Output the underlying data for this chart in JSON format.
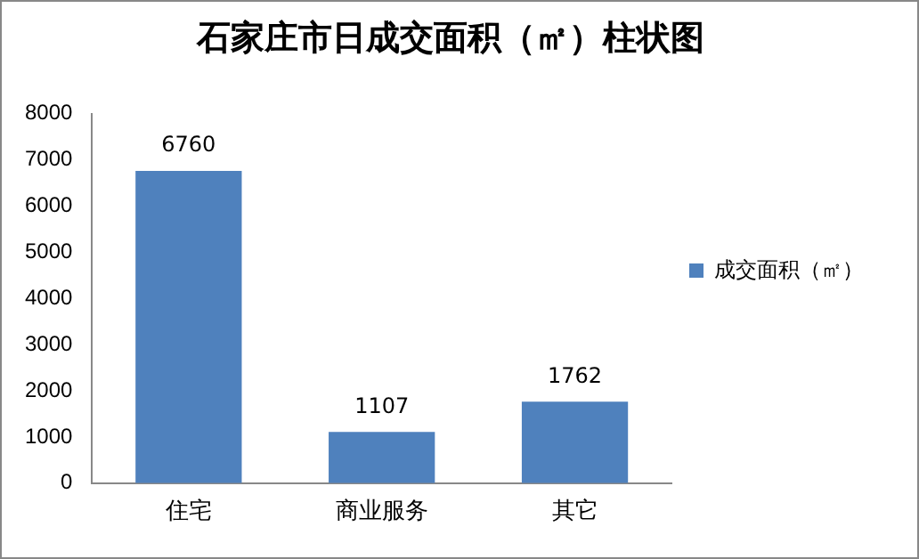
{
  "chart_data": {
    "type": "bar",
    "title": "石家庄市日成交面积（㎡）柱状图",
    "categories": [
      "住宅",
      "商业服务",
      "其它"
    ],
    "series": [
      {
        "name": "成交面积（㎡）",
        "color": "#4f81bd",
        "values": [
          6760,
          1107,
          1762
        ]
      }
    ],
    "ylim": [
      0,
      8000
    ],
    "yticks": [
      0,
      1000,
      2000,
      3000,
      4000,
      5000,
      6000,
      7000,
      8000
    ],
    "grid": false,
    "legend": "right",
    "data_labels": true
  }
}
